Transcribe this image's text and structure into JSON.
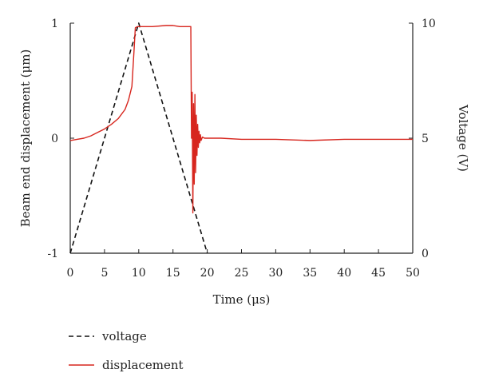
{
  "chart_data": {
    "type": "line",
    "xlabel": "Time (μs)",
    "ylabel_left": "Beam end displacement (μm)",
    "ylabel_right": "Voltage (V)",
    "xlim": [
      0,
      50
    ],
    "ylim_left": [
      -1,
      1
    ],
    "ylim_right": [
      0,
      10
    ],
    "x_ticks": [
      0,
      5,
      10,
      15,
      20,
      25,
      30,
      35,
      40,
      45,
      50
    ],
    "y_left_ticks": [
      -1,
      0,
      1
    ],
    "y_left_tick_labels": [
      "-1",
      "0",
      "1"
    ],
    "y_right_ticks": [
      0,
      5,
      10
    ],
    "grid": false,
    "legend_position": "bottom-left",
    "series": [
      {
        "name": "voltage",
        "axis": "right",
        "style": "dashed",
        "color": "#111111",
        "x": [
          0,
          10,
          20
        ],
        "y": [
          0,
          10,
          0
        ]
      },
      {
        "name": "displacement",
        "axis": "left",
        "style": "solid",
        "color": "#d7261e",
        "x": [
          0,
          1,
          2,
          3,
          4,
          5,
          6,
          7,
          8,
          8.5,
          9,
          9.3,
          9.5,
          9.8,
          10.5,
          12,
          14,
          15,
          16,
          17,
          17.6,
          17.7,
          17.8,
          17.9,
          18.0,
          18.1,
          18.2,
          18.3,
          18.4,
          18.5,
          18.6,
          18.7,
          18.8,
          18.9,
          19.0,
          19.1,
          19.3,
          19.6,
          20,
          22,
          25,
          30,
          35,
          40,
          45,
          50
        ],
        "y": [
          -0.02,
          -0.01,
          0.0,
          0.02,
          0.05,
          0.08,
          0.12,
          0.17,
          0.25,
          0.33,
          0.45,
          0.75,
          0.96,
          0.97,
          0.97,
          0.97,
          0.98,
          0.98,
          0.97,
          0.97,
          0.97,
          0.0,
          0.4,
          -0.65,
          0.3,
          -0.4,
          0.38,
          -0.3,
          0.2,
          -0.15,
          0.12,
          -0.08,
          0.06,
          -0.04,
          0.03,
          -0.02,
          0.01,
          0.0,
          0.0,
          0.0,
          -0.01,
          -0.01,
          -0.02,
          -0.01,
          -0.01,
          -0.01
        ]
      }
    ]
  }
}
